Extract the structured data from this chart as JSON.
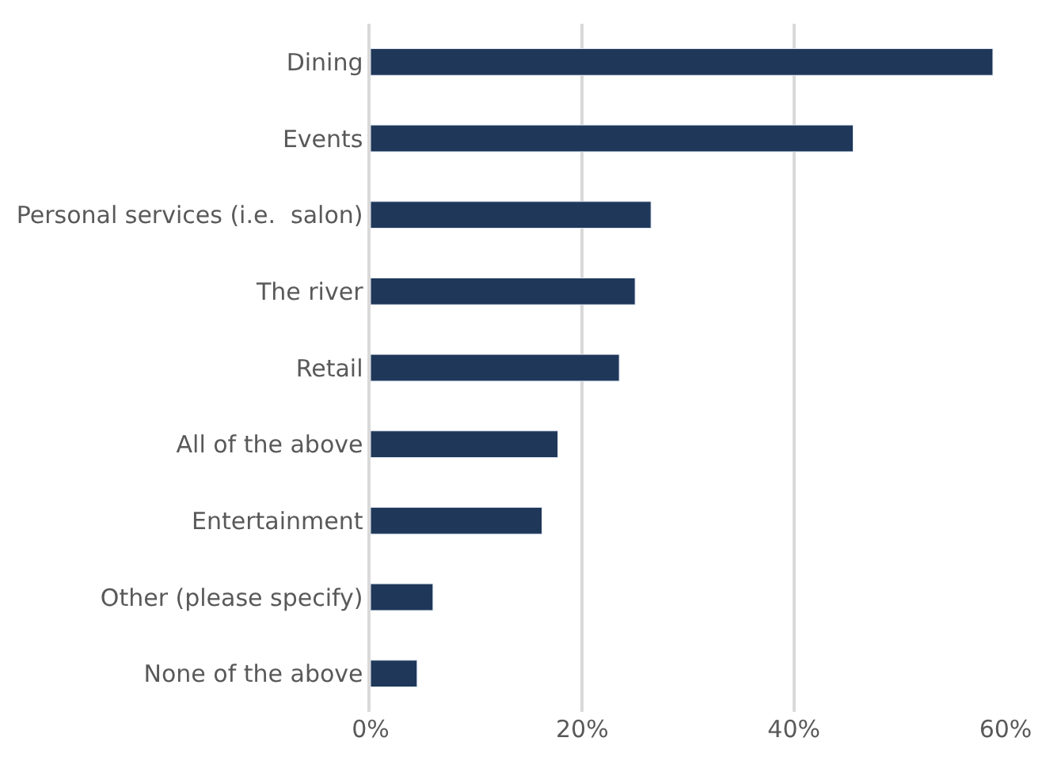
{
  "chart_data": {
    "type": "bar",
    "orientation": "horizontal",
    "categories": [
      "Dining",
      "Events",
      "Personal services (i.e.  salon)",
      "The river",
      "Retail",
      "All of the above",
      "Entertainment",
      "Other (please specify)",
      "None of the above"
    ],
    "values": [
      58.8,
      45.6,
      26.5,
      25.0,
      23.5,
      17.7,
      16.2,
      5.9,
      4.4
    ],
    "color": "#1f3759",
    "xlim": [
      0,
      60
    ],
    "xticks": [
      {
        "value": 0,
        "label": "0%"
      },
      {
        "value": 20,
        "label": "20%"
      },
      {
        "value": 40,
        "label": "40%"
      },
      {
        "value": 60,
        "label": "60%"
      }
    ],
    "grid": "x"
  }
}
